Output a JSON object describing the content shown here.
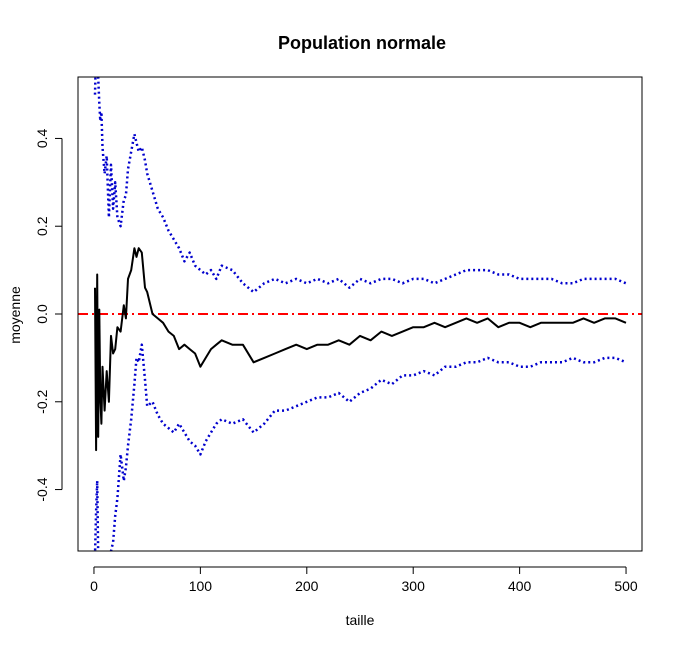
{
  "chart_data": {
    "type": "line",
    "title": "Population normale",
    "xlabel": "taille",
    "ylabel": "moyenne",
    "xlim": [
      -15,
      515
    ],
    "ylim": [
      -0.54,
      0.54
    ],
    "xticks": [
      0,
      100,
      200,
      300,
      400,
      500
    ],
    "yticks": [
      -0.4,
      -0.2,
      0.0,
      0.2,
      0.4
    ],
    "xtick_labels": [
      "0",
      "100",
      "200",
      "300",
      "400",
      "500"
    ],
    "ytick_labels": [
      "-0.4",
      "-0.2",
      "0.0",
      "0.2",
      "0.4"
    ],
    "grid": false,
    "reference_line": {
      "y": 0.0,
      "color": "#ff0000",
      "style": "dashdot"
    },
    "series": [
      {
        "role": "mean",
        "color": "#000000",
        "style": "solid",
        "x": [
          1,
          2,
          3,
          4,
          5,
          6,
          7,
          8,
          10,
          12,
          14,
          16,
          18,
          20,
          22,
          25,
          28,
          30,
          32,
          35,
          38,
          40,
          42,
          45,
          48,
          50,
          55,
          60,
          65,
          70,
          75,
          80,
          85,
          90,
          95,
          100,
          105,
          110,
          115,
          120,
          130,
          140,
          150,
          160,
          170,
          180,
          190,
          200,
          210,
          220,
          230,
          240,
          250,
          260,
          270,
          280,
          290,
          300,
          310,
          320,
          330,
          340,
          350,
          360,
          370,
          380,
          390,
          400,
          410,
          420,
          430,
          440,
          450,
          460,
          470,
          480,
          490,
          500
        ],
        "y": [
          0.06,
          -0.31,
          0.09,
          -0.28,
          0.01,
          -0.19,
          -0.25,
          -0.12,
          -0.22,
          -0.13,
          -0.2,
          -0.05,
          -0.09,
          -0.08,
          -0.03,
          -0.04,
          0.02,
          -0.01,
          0.08,
          0.1,
          0.15,
          0.13,
          0.15,
          0.14,
          0.06,
          0.05,
          0.0,
          -0.01,
          -0.02,
          -0.04,
          -0.05,
          -0.08,
          -0.07,
          -0.08,
          -0.09,
          -0.12,
          -0.1,
          -0.08,
          -0.07,
          -0.06,
          -0.07,
          -0.07,
          -0.11,
          -0.1,
          -0.09,
          -0.08,
          -0.07,
          -0.08,
          -0.07,
          -0.07,
          -0.06,
          -0.07,
          -0.05,
          -0.06,
          -0.04,
          -0.05,
          -0.04,
          -0.03,
          -0.03,
          -0.02,
          -0.03,
          -0.02,
          -0.01,
          -0.02,
          -0.01,
          -0.03,
          -0.02,
          -0.02,
          -0.03,
          -0.02,
          -0.02,
          -0.02,
          -0.02,
          -0.01,
          -0.02,
          -0.01,
          -0.01,
          -0.02
        ]
      },
      {
        "role": "upper-bound",
        "color": "#0000cd",
        "style": "dotted",
        "x": [
          1,
          2,
          3,
          4,
          5,
          6,
          7,
          8,
          10,
          12,
          14,
          16,
          18,
          20,
          22,
          25,
          28,
          30,
          32,
          35,
          38,
          40,
          42,
          45,
          48,
          50,
          55,
          60,
          65,
          70,
          75,
          80,
          85,
          90,
          95,
          100,
          105,
          110,
          115,
          120,
          130,
          140,
          150,
          160,
          170,
          180,
          190,
          200,
          210,
          220,
          230,
          240,
          250,
          260,
          270,
          280,
          290,
          300,
          310,
          320,
          330,
          340,
          350,
          360,
          370,
          380,
          390,
          400,
          410,
          420,
          430,
          440,
          450,
          460,
          470,
          480,
          490,
          500
        ],
        "y": [
          0.5,
          0.6,
          0.58,
          0.54,
          0.48,
          0.44,
          0.46,
          0.38,
          0.32,
          0.36,
          0.22,
          0.34,
          0.24,
          0.3,
          0.22,
          0.2,
          0.26,
          0.27,
          0.33,
          0.37,
          0.41,
          0.39,
          0.37,
          0.38,
          0.35,
          0.32,
          0.28,
          0.24,
          0.22,
          0.19,
          0.17,
          0.15,
          0.12,
          0.14,
          0.11,
          0.1,
          0.09,
          0.1,
          0.08,
          0.11,
          0.1,
          0.07,
          0.05,
          0.07,
          0.08,
          0.07,
          0.08,
          0.07,
          0.08,
          0.07,
          0.08,
          0.06,
          0.08,
          0.07,
          0.08,
          0.08,
          0.07,
          0.08,
          0.08,
          0.07,
          0.08,
          0.09,
          0.1,
          0.1,
          0.1,
          0.09,
          0.09,
          0.08,
          0.08,
          0.08,
          0.08,
          0.07,
          0.07,
          0.08,
          0.08,
          0.08,
          0.08,
          0.07
        ]
      },
      {
        "role": "lower-bound",
        "color": "#0000cd",
        "style": "dotted",
        "x": [
          1,
          2,
          3,
          4,
          5,
          6,
          7,
          8,
          10,
          12,
          14,
          16,
          18,
          20,
          22,
          25,
          28,
          30,
          32,
          35,
          38,
          40,
          42,
          45,
          48,
          50,
          55,
          60,
          65,
          70,
          75,
          80,
          85,
          90,
          95,
          100,
          105,
          110,
          115,
          120,
          130,
          140,
          150,
          160,
          170,
          180,
          190,
          200,
          210,
          220,
          230,
          240,
          250,
          260,
          270,
          280,
          290,
          300,
          310,
          320,
          330,
          340,
          350,
          360,
          370,
          380,
          390,
          400,
          410,
          420,
          430,
          440,
          450,
          460,
          470,
          480,
          490,
          500
        ],
        "y": [
          -0.55,
          -0.45,
          -0.38,
          -0.55,
          -0.6,
          -0.62,
          -0.7,
          -0.66,
          -0.6,
          -0.62,
          -0.62,
          -0.54,
          -0.52,
          -0.46,
          -0.42,
          -0.32,
          -0.38,
          -0.35,
          -0.3,
          -0.24,
          -0.16,
          -0.1,
          -0.11,
          -0.07,
          -0.15,
          -0.21,
          -0.2,
          -0.23,
          -0.25,
          -0.26,
          -0.27,
          -0.25,
          -0.27,
          -0.29,
          -0.3,
          -0.32,
          -0.29,
          -0.27,
          -0.25,
          -0.24,
          -0.25,
          -0.24,
          -0.27,
          -0.25,
          -0.22,
          -0.22,
          -0.21,
          -0.2,
          -0.19,
          -0.19,
          -0.18,
          -0.2,
          -0.18,
          -0.17,
          -0.15,
          -0.16,
          -0.14,
          -0.14,
          -0.13,
          -0.14,
          -0.12,
          -0.12,
          -0.11,
          -0.11,
          -0.1,
          -0.11,
          -0.11,
          -0.12,
          -0.12,
          -0.11,
          -0.11,
          -0.11,
          -0.1,
          -0.11,
          -0.11,
          -0.1,
          -0.1,
          -0.11
        ]
      }
    ]
  }
}
